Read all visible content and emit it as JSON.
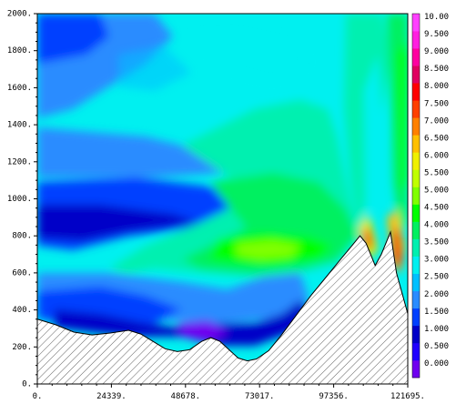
{
  "chart_data": {
    "type": "heatmap",
    "title": "",
    "xlabel": "",
    "ylabel": "",
    "xlim": [
      0,
      121695
    ],
    "ylim": [
      0,
      2000
    ],
    "x_ticks": [
      {
        "value": 0,
        "label": "0."
      },
      {
        "value": 24339,
        "label": "24339."
      },
      {
        "value": 48678,
        "label": "48678."
      },
      {
        "value": 73017,
        "label": "73017."
      },
      {
        "value": 97356,
        "label": "97356."
      },
      {
        "value": 121695,
        "label": "121695."
      }
    ],
    "y_ticks": [
      {
        "value": 0,
        "label": "0."
      },
      {
        "value": 200,
        "label": "200."
      },
      {
        "value": 400,
        "label": "400."
      },
      {
        "value": 600,
        "label": "600."
      },
      {
        "value": 800,
        "label": "800."
      },
      {
        "value": 1000,
        "label": "1000."
      },
      {
        "value": 1200,
        "label": "1200."
      },
      {
        "value": 1400,
        "label": "1400."
      },
      {
        "value": 1600,
        "label": "1600."
      },
      {
        "value": 1800,
        "label": "1800."
      },
      {
        "value": 2000,
        "label": "2000."
      }
    ],
    "colorbar": {
      "levels": [
        {
          "label": "0.000",
          "color": "#7000f0"
        },
        {
          "label": "0.500",
          "color": "#2000ff"
        },
        {
          "label": "1.000",
          "color": "#0000c8"
        },
        {
          "label": "1.500",
          "color": "#0040ff"
        },
        {
          "label": "2.000",
          "color": "#2a8cff"
        },
        {
          "label": "2.500",
          "color": "#00c0ff"
        },
        {
          "label": "3.000",
          "color": "#00f0f0"
        },
        {
          "label": "3.500",
          "color": "#00f0b0"
        },
        {
          "label": "4.000",
          "color": "#00f060"
        },
        {
          "label": "4.500",
          "color": "#00ff00"
        },
        {
          "label": "5.000",
          "color": "#80ff00"
        },
        {
          "label": "5.500",
          "color": "#c0ff00"
        },
        {
          "label": "6.000",
          "color": "#f0f000"
        },
        {
          "label": "6.500",
          "color": "#ffc000"
        },
        {
          "label": "7.000",
          "color": "#ff8000"
        },
        {
          "label": "7.500",
          "color": "#ff4000"
        },
        {
          "label": "8.000",
          "color": "#ff0000"
        },
        {
          "label": "8.500",
          "color": "#e00060"
        },
        {
          "label": "9.000",
          "color": "#ff00a0"
        },
        {
          "label": "9.500",
          "color": "#ff20e0"
        },
        {
          "label": "10.00",
          "color": "#ff40ff"
        }
      ]
    },
    "terrain": [
      {
        "x": 0,
        "y": 350
      },
      {
        "x": 6000,
        "y": 320
      },
      {
        "x": 12000,
        "y": 280
      },
      {
        "x": 18000,
        "y": 265
      },
      {
        "x": 24000,
        "y": 275
      },
      {
        "x": 30000,
        "y": 290
      },
      {
        "x": 34000,
        "y": 270
      },
      {
        "x": 38000,
        "y": 230
      },
      {
        "x": 42000,
        "y": 190
      },
      {
        "x": 46000,
        "y": 175
      },
      {
        "x": 50000,
        "y": 185
      },
      {
        "x": 54000,
        "y": 230
      },
      {
        "x": 57000,
        "y": 250
      },
      {
        "x": 60000,
        "y": 230
      },
      {
        "x": 63000,
        "y": 185
      },
      {
        "x": 66000,
        "y": 140
      },
      {
        "x": 69000,
        "y": 125
      },
      {
        "x": 72000,
        "y": 135
      },
      {
        "x": 76000,
        "y": 180
      },
      {
        "x": 80000,
        "y": 260
      },
      {
        "x": 85000,
        "y": 370
      },
      {
        "x": 90000,
        "y": 480
      },
      {
        "x": 95000,
        "y": 580
      },
      {
        "x": 100000,
        "y": 680
      },
      {
        "x": 103000,
        "y": 740
      },
      {
        "x": 106000,
        "y": 800
      },
      {
        "x": 108000,
        "y": 760
      },
      {
        "x": 111000,
        "y": 640
      },
      {
        "x": 113000,
        "y": 700
      },
      {
        "x": 116000,
        "y": 820
      },
      {
        "x": 118000,
        "y": 600
      },
      {
        "x": 121695,
        "y": 380
      }
    ],
    "legend_position": "right",
    "grid": false,
    "colors": {
      "terrain_fill": "#ffffff",
      "hatch": "#000000"
    }
  }
}
